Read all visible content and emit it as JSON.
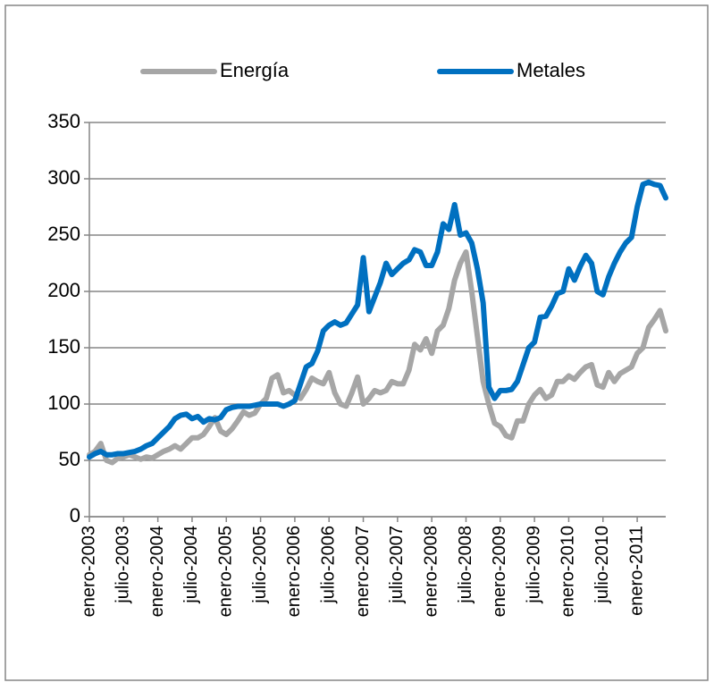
{
  "chart_data": {
    "type": "line",
    "categories": [
      "enero-2003",
      null,
      null,
      null,
      null,
      null,
      "julio-2003",
      null,
      null,
      null,
      null,
      null,
      "enero-2004",
      null,
      null,
      null,
      null,
      null,
      "julio-2004",
      null,
      null,
      null,
      null,
      null,
      "enero-2005",
      null,
      null,
      null,
      null,
      null,
      "julio-2005",
      null,
      null,
      null,
      null,
      null,
      "enero-2006",
      null,
      null,
      null,
      null,
      null,
      "julio-2006",
      null,
      null,
      null,
      null,
      null,
      "enero-2007",
      null,
      null,
      null,
      null,
      null,
      "julio-2007",
      null,
      null,
      null,
      null,
      null,
      "enero-2008",
      null,
      null,
      null,
      null,
      null,
      "julio-2008",
      null,
      null,
      null,
      null,
      null,
      "enero-2009",
      null,
      null,
      null,
      null,
      null,
      "julio-2009",
      null,
      null,
      null,
      null,
      null,
      "enero-2010",
      null,
      null,
      null,
      null,
      null,
      "julio-2010",
      null,
      null,
      null,
      null,
      null,
      "enero-2011",
      null,
      null,
      null,
      null,
      null
    ],
    "series": [
      {
        "name": "Energía",
        "color": "#a6a6a6",
        "values": [
          55,
          58,
          65,
          50,
          48,
          52,
          53,
          55,
          53,
          51,
          53,
          52,
          55,
          58,
          60,
          63,
          60,
          65,
          70,
          70,
          73,
          80,
          88,
          76,
          73,
          78,
          85,
          93,
          90,
          92,
          100,
          105,
          123,
          126,
          110,
          112,
          108,
          105,
          113,
          123,
          120,
          118,
          128,
          110,
          100,
          98,
          110,
          124,
          100,
          105,
          112,
          110,
          112,
          120,
          118,
          118,
          130,
          153,
          148,
          158,
          145,
          165,
          170,
          185,
          210,
          225,
          235,
          200,
          160,
          120,
          100,
          83,
          80,
          72,
          70,
          85,
          85,
          100,
          108,
          113,
          105,
          108,
          120,
          120,
          125,
          122,
          128,
          133,
          135,
          117,
          115,
          128,
          120,
          127,
          130,
          133,
          145,
          150,
          168,
          175,
          183,
          165
        ]
      },
      {
        "name": "Metales",
        "color": "#0070c0",
        "values": [
          53,
          56,
          58,
          55,
          55,
          56,
          56,
          57,
          58,
          60,
          63,
          65,
          70,
          75,
          80,
          87,
          90,
          91,
          87,
          89,
          84,
          87,
          86,
          88,
          95,
          97,
          98,
          98,
          98,
          99,
          100,
          100,
          100,
          100,
          98,
          100,
          103,
          118,
          133,
          136,
          147,
          165,
          170,
          173,
          170,
          172,
          180,
          188,
          230,
          182,
          195,
          208,
          225,
          215,
          220,
          225,
          228,
          237,
          235,
          223,
          223,
          235,
          260,
          255,
          277,
          250,
          252,
          243,
          220,
          190,
          115,
          105,
          112,
          112,
          113,
          120,
          135,
          150,
          155,
          177,
          178,
          187,
          198,
          200,
          220,
          210,
          222,
          232,
          225,
          200,
          197,
          213,
          225,
          235,
          243,
          248,
          275,
          295,
          297,
          295,
          294,
          283
        ]
      }
    ],
    "ylim": [
      0,
      350
    ],
    "yticks": [
      0,
      50,
      100,
      150,
      200,
      250,
      300,
      350
    ],
    "grid": true,
    "legend": "top"
  }
}
